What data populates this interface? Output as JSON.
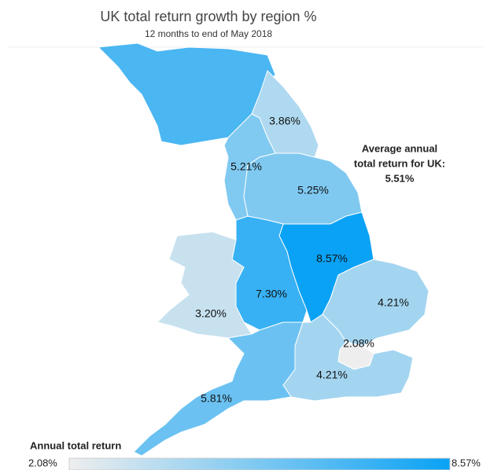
{
  "map": {
    "title": "UK total return growth by region %",
    "subtitle": "12 months to end of May 2018",
    "annotation": [
      "Average annual",
      "total return for UK:",
      "5.51%"
    ],
    "regions": [
      {
        "value": 3.86,
        "label": "3.86%"
      },
      {
        "value": 5.21,
        "label": "5.21%"
      },
      {
        "value": 5.25,
        "label": "5.25%"
      },
      {
        "value": 8.57,
        "label": "8.57%"
      },
      {
        "value": 7.3,
        "label": "7.30%"
      },
      {
        "value": 3.2,
        "label": "3.20%"
      },
      {
        "value": 4.21,
        "label": "4.21%"
      },
      {
        "value": 2.08,
        "label": "2.08%"
      },
      {
        "value": 4.21,
        "label": "4.21%"
      },
      {
        "value": 5.81,
        "label": "5.81%"
      }
    ],
    "legend": {
      "title": "Annual total return",
      "min": {
        "value": 2.08,
        "label": "2.08%"
      },
      "max": {
        "value": 8.57,
        "label": "8.57%"
      },
      "colors": [
        "#eeeeee",
        "#0aa2f5"
      ]
    }
  }
}
